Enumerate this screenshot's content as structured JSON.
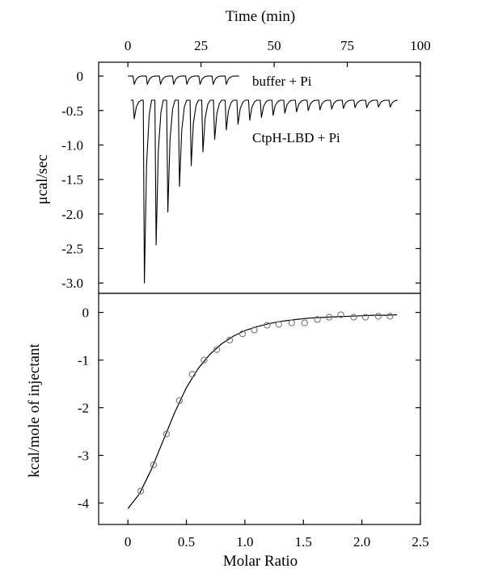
{
  "chart_data": [
    {
      "type": "line",
      "panel": "top",
      "x_axis": {
        "label": "Time (min)",
        "position": "top",
        "ticks": [
          0,
          25,
          50,
          75,
          100
        ],
        "lim": [
          -10,
          100
        ]
      },
      "y_axis": {
        "label": "μcal/sec",
        "ticks": [
          "0",
          "-0.5",
          "-1.0",
          "-1.5",
          "-2.0",
          "-2.5",
          "-3.0"
        ],
        "tick_values": [
          0,
          -0.5,
          -1.0,
          -1.5,
          -2.0,
          -2.5,
          -3.0
        ],
        "lim": [
          -3.15,
          0.2
        ]
      },
      "series": [
        {
          "name": "buffer + Pi",
          "baseline": 0,
          "x_start": 0,
          "x_end": 38,
          "peak_times": [
            2,
            6.5,
            11,
            15.5,
            20,
            24.5,
            29,
            33.5
          ],
          "peak_depths": [
            -0.12,
            -0.12,
            -0.12,
            -0.12,
            -0.12,
            -0.12,
            -0.12,
            -0.12
          ]
        },
        {
          "name": "CtpH-LBD + Pi",
          "baseline": -0.35,
          "x_start": 1,
          "x_end": 92,
          "peak_times": [
            2,
            5.5,
            9.5,
            13.5,
            17.5,
            21.5,
            25.5,
            29.5,
            33.5,
            37.5,
            41.5,
            45.5,
            49.5,
            53.5,
            57.5,
            61.5,
            65.5,
            69.5,
            73.5,
            77.5,
            81.5,
            85.5,
            89.5
          ],
          "peak_depths": [
            -0.62,
            -3.0,
            -2.45,
            -1.97,
            -1.6,
            -1.3,
            -1.1,
            -0.92,
            -0.78,
            -0.7,
            -0.64,
            -0.6,
            -0.57,
            -0.54,
            -0.52,
            -0.5,
            -0.49,
            -0.48,
            -0.47,
            -0.46,
            -0.46,
            -0.45,
            -0.45
          ]
        }
      ]
    },
    {
      "type": "scatter",
      "panel": "bottom",
      "x_axis": {
        "label": "Molar Ratio",
        "ticks": [
          "0",
          "0.5",
          "1.0",
          "1.5",
          "2.0",
          "2.5"
        ],
        "tick_values": [
          0,
          0.5,
          1.0,
          1.5,
          2.0,
          2.5
        ],
        "lim": [
          -0.25,
          2.5
        ]
      },
      "y_axis": {
        "label": "kcal/mole of injectant",
        "ticks": [
          "0",
          "-1",
          "-2",
          "-3",
          "-4"
        ],
        "tick_values": [
          0,
          -1,
          -2,
          -3,
          -4
        ],
        "lim": [
          -4.45,
          0.4
        ]
      },
      "points": {
        "x": [
          0.11,
          0.22,
          0.33,
          0.44,
          0.55,
          0.65,
          0.76,
          0.87,
          0.98,
          1.08,
          1.19,
          1.29,
          1.4,
          1.51,
          1.62,
          1.72,
          1.82,
          1.93,
          2.03,
          2.14,
          2.24
        ],
        "y": [
          -3.75,
          -3.2,
          -2.55,
          -1.85,
          -1.3,
          -1.0,
          -0.78,
          -0.58,
          -0.45,
          -0.37,
          -0.27,
          -0.25,
          -0.22,
          -0.22,
          -0.15,
          -0.1,
          -0.05,
          -0.1,
          -0.1,
          -0.08,
          -0.08
        ]
      },
      "fit": {
        "x": [
          0.0,
          0.1,
          0.2,
          0.3,
          0.4,
          0.5,
          0.6,
          0.7,
          0.8,
          0.9,
          1.0,
          1.1,
          1.2,
          1.3,
          1.4,
          1.5,
          1.6,
          1.7,
          1.8,
          1.9,
          2.0,
          2.1,
          2.2,
          2.3
        ],
        "y": [
          -4.12,
          -3.8,
          -3.3,
          -2.7,
          -2.1,
          -1.58,
          -1.18,
          -0.88,
          -0.66,
          -0.5,
          -0.38,
          -0.3,
          -0.24,
          -0.19,
          -0.16,
          -0.13,
          -0.11,
          -0.1,
          -0.09,
          -0.08,
          -0.07,
          -0.06,
          -0.06,
          -0.05
        ]
      }
    }
  ]
}
